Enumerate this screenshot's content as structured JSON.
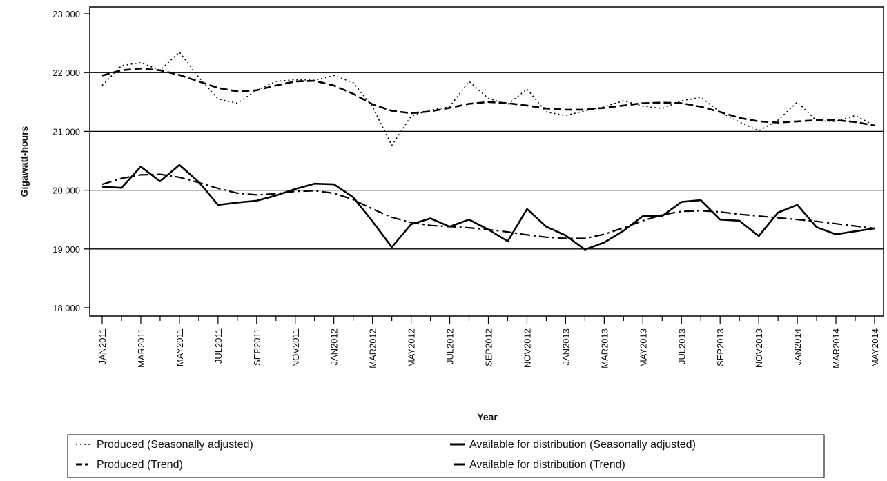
{
  "chart_data": {
    "type": "line",
    "title": "",
    "xlabel": "Year",
    "ylabel": "Gigawatt-hours",
    "ylim": [
      18000,
      23000
    ],
    "yticks": [
      18000,
      19000,
      20000,
      21000,
      22000,
      23000
    ],
    "ytick_labels": [
      "18 000",
      "19 000",
      "20 000",
      "21 000",
      "22 000",
      "23 000"
    ],
    "grid": "horizontal major lines at each y tick",
    "legend_placement": "bottom",
    "x": [
      "JAN2011",
      "FEB2011",
      "MAR2011",
      "APR2011",
      "MAY2011",
      "JUN2011",
      "JUL2011",
      "AUG2011",
      "SEP2011",
      "OCT2011",
      "NOV2011",
      "DEC2011",
      "JAN2012",
      "FEB2012",
      "MAR2012",
      "APR2012",
      "MAY2012",
      "JUN2012",
      "JUL2012",
      "AUG2012",
      "SEP2012",
      "OCT2012",
      "NOV2012",
      "DEC2012",
      "JAN2013",
      "FEB2013",
      "MAR2013",
      "APR2013",
      "MAY2013",
      "JUN2013",
      "JUL2013",
      "AUG2013",
      "SEP2013",
      "OCT2013",
      "NOV2013",
      "DEC2013",
      "JAN2014",
      "FEB2014",
      "MAR2014",
      "APR2014",
      "MAY2014"
    ],
    "xtick_labels": [
      "JAN2011",
      "MAR2011",
      "MAY2011",
      "JUL2011",
      "SEP2011",
      "NOV2011",
      "JAN2012",
      "MAR2012",
      "MAY2012",
      "JUL2012",
      "SEP2012",
      "NOV2012",
      "JAN2013",
      "MAR2013",
      "MAY2013",
      "JUL2013",
      "SEP2013",
      "NOV2013",
      "JAN2014",
      "MAR2014",
      "MAY2014"
    ],
    "series": [
      {
        "name": "Produced (Seasonally adjusted)",
        "style": "dotted",
        "values": [
          21780,
          22120,
          22170,
          22040,
          22350,
          21920,
          21550,
          21480,
          21700,
          21850,
          21880,
          21870,
          21950,
          21830,
          21420,
          20760,
          21260,
          21360,
          21420,
          21850,
          21560,
          21460,
          21720,
          21330,
          21270,
          21350,
          21420,
          21520,
          21430,
          21390,
          21520,
          21580,
          21330,
          21160,
          21010,
          21190,
          21500,
          21180,
          21170,
          21270,
          21100
        ]
      },
      {
        "name": "Produced (Trend)",
        "style": "dashed",
        "values": [
          21950,
          22040,
          22070,
          22040,
          21960,
          21850,
          21740,
          21680,
          21700,
          21780,
          21850,
          21860,
          21780,
          21640,
          21460,
          21350,
          21310,
          21340,
          21400,
          21470,
          21500,
          21480,
          21440,
          21390,
          21370,
          21370,
          21400,
          21440,
          21480,
          21490,
          21480,
          21420,
          21330,
          21230,
          21170,
          21150,
          21170,
          21190,
          21190,
          21160,
          21100
        ]
      },
      {
        "name": "Available for distribution (Seasonally adjusted)",
        "style": "solid",
        "values": [
          20060,
          20040,
          20400,
          20150,
          20430,
          20140,
          19750,
          19790,
          19820,
          19910,
          20020,
          20110,
          20100,
          19880,
          19470,
          19030,
          19420,
          19520,
          19380,
          19500,
          19330,
          19130,
          19680,
          19380,
          19230,
          18990,
          19110,
          19310,
          19560,
          19560,
          19800,
          19830,
          19500,
          19480,
          19220,
          19620,
          19750,
          19370,
          19250,
          19300,
          19350
        ]
      },
      {
        "name": "Available for distribution (Trend)",
        "style": "dashdot",
        "values": [
          20100,
          20200,
          20260,
          20270,
          20220,
          20130,
          20030,
          19950,
          19920,
          19940,
          19980,
          19990,
          19950,
          19840,
          19680,
          19540,
          19450,
          19400,
          19380,
          19360,
          19330,
          19290,
          19240,
          19200,
          19180,
          19180,
          19250,
          19360,
          19480,
          19580,
          19640,
          19650,
          19630,
          19590,
          19560,
          19530,
          19500,
          19470,
          19430,
          19390,
          19350
        ]
      }
    ]
  },
  "legend": {
    "items": [
      "Produced (Seasonally adjusted)",
      "Available for distribution (Seasonally adjusted)",
      "Produced (Trend)",
      "Available for distribution (Trend)"
    ]
  }
}
